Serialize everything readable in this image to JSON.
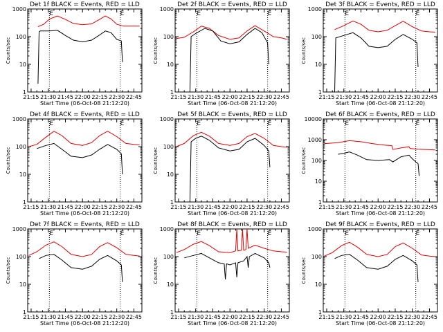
{
  "chart_data": [
    {
      "type": "line",
      "title": "Det 1f BLACK = Events, RED = LLD",
      "ylabel": "Counts/sec",
      "xlabel": "Start Time (06-Oct-08 21:12:20)",
      "x_ticks": [
        "21:15",
        "21:30",
        "21:45",
        "22:00",
        "22:15",
        "22:30",
        "22:45"
      ],
      "y_ticks": [
        "1",
        "10",
        "100",
        "1000"
      ],
      "ylim": [
        1,
        1000
      ],
      "yscale": "log",
      "xlim": [
        "21:12",
        "22:52"
      ],
      "vlines": [
        "21:31",
        "22:33"
      ],
      "markers": [
        "E",
        "E"
      ],
      "series": [
        {
          "name": "LLD",
          "color": "#e00000",
          "x": [
            "21:21",
            "21:26",
            "21:31",
            "21:38",
            "21:45",
            "21:52",
            "22:00",
            "22:08",
            "22:15",
            "22:20",
            "22:25",
            "22:30",
            "22:36",
            "22:44",
            "22:50"
          ],
          "values": [
            230,
            280,
            430,
            560,
            420,
            300,
            270,
            290,
            420,
            560,
            440,
            280,
            240,
            240,
            240
          ]
        },
        {
          "name": "Events",
          "color": "#000000",
          "x": [
            "21:21",
            "21:22",
            "21:23",
            "21:31",
            "21:38",
            "21:45",
            "21:52",
            "22:00",
            "22:08",
            "22:15",
            "22:20",
            "22:25",
            "22:30",
            "22:34",
            "22:35"
          ],
          "values": [
            2,
            150,
            160,
            160,
            170,
            110,
            75,
            65,
            75,
            115,
            160,
            140,
            80,
            70,
            12
          ]
        }
      ]
    },
    {
      "type": "line",
      "title": "Det 2f BLACK = Events, RED = LLD",
      "ylabel": "Counts/sec",
      "xlabel": "Start Time (06-Oct-08 21:12:20)",
      "x_ticks": [
        "21:15",
        "21:30",
        "21:45",
        "22:00",
        "22:15",
        "22:30",
        "22:45"
      ],
      "y_ticks": [
        "1",
        "10",
        "100",
        "1000"
      ],
      "ylim": [
        1,
        1000
      ],
      "yscale": "log",
      "xlim": [
        "21:12",
        "22:52"
      ],
      "vlines": [
        "21:31",
        "22:33"
      ],
      "markers": [
        "E",
        "E"
      ],
      "series": [
        {
          "name": "LLD",
          "color": "#e00000",
          "x": [
            "21:13",
            "21:20",
            "21:28",
            "21:35",
            "21:42",
            "21:50",
            "22:00",
            "22:08",
            "22:15",
            "22:22",
            "22:30",
            "22:38",
            "22:45",
            "22:50"
          ],
          "values": [
            85,
            95,
            150,
            240,
            200,
            110,
            80,
            90,
            160,
            250,
            160,
            100,
            90,
            80
          ]
        },
        {
          "name": "Events",
          "color": "#000000",
          "x": [
            "21:25",
            "21:26",
            "21:30",
            "21:38",
            "21:45",
            "21:52",
            "22:00",
            "22:08",
            "22:15",
            "22:22",
            "22:28",
            "22:33",
            "22:34"
          ],
          "values": [
            1,
            100,
            130,
            200,
            160,
            70,
            55,
            65,
            120,
            200,
            140,
            60,
            10
          ]
        }
      ]
    },
    {
      "type": "line",
      "title": "Det 3f BLACK = Events, RED = LLD",
      "ylabel": "Counts/sec",
      "xlabel": "Start Time (06-Oct-08 21:12:20)",
      "x_ticks": [
        "21:15",
        "21:30",
        "21:45",
        "22:00",
        "22:15",
        "22:30",
        "22:45"
      ],
      "y_ticks": [
        "1",
        "10",
        "100",
        "1000"
      ],
      "ylim": [
        1,
        1000
      ],
      "yscale": "log",
      "xlim": [
        "21:12",
        "22:52"
      ],
      "vlines": [
        "21:31",
        "22:33"
      ],
      "markers": [
        "E",
        "E"
      ],
      "series": [
        {
          "name": "LLD",
          "color": "#e00000",
          "x": [
            "21:22",
            "21:30",
            "21:38",
            "21:45",
            "21:52",
            "22:00",
            "22:08",
            "22:15",
            "22:22",
            "22:30",
            "22:38",
            "22:45",
            "22:50"
          ],
          "values": [
            180,
            250,
            370,
            280,
            170,
            150,
            170,
            250,
            360,
            230,
            160,
            150,
            145
          ]
        },
        {
          "name": "Events",
          "color": "#000000",
          "x": [
            "21:22",
            "21:23",
            "21:30",
            "21:38",
            "21:45",
            "21:52",
            "22:00",
            "22:08",
            "22:15",
            "22:22",
            "22:30",
            "22:34",
            "22:35"
          ],
          "values": [
            1,
            90,
            110,
            140,
            90,
            45,
            40,
            45,
            80,
            120,
            80,
            60,
            8
          ]
        }
      ]
    },
    {
      "type": "line",
      "title": "Det 4f BLACK = Events, RED = LLD",
      "ylabel": "Counts/sec",
      "xlabel": "Start Time (06-Oct-08 21:12:20)",
      "x_ticks": [
        "21:15",
        "21:30",
        "21:45",
        "22:00",
        "22:15",
        "22:30",
        "22:45"
      ],
      "y_ticks": [
        "1",
        "10",
        "100",
        "1000"
      ],
      "ylim": [
        1,
        1000
      ],
      "yscale": "log",
      "xlim": [
        "21:12",
        "22:52"
      ],
      "vlines": [
        "21:31",
        "22:33"
      ],
      "markers": [
        "E",
        "E"
      ],
      "series": [
        {
          "name": "LLD",
          "color": "#e00000",
          "x": [
            "21:13",
            "21:20",
            "21:28",
            "21:35",
            "21:42",
            "21:50",
            "22:00",
            "22:08",
            "22:15",
            "22:22",
            "22:30",
            "22:38",
            "22:45",
            "22:50"
          ],
          "values": [
            100,
            120,
            220,
            360,
            250,
            130,
            110,
            140,
            250,
            360,
            230,
            130,
            120,
            115
          ]
        },
        {
          "name": "Events",
          "color": "#000000",
          "x": [
            "21:20",
            "21:28",
            "21:35",
            "21:42",
            "21:50",
            "22:00",
            "22:08",
            "22:15",
            "22:22",
            "22:30",
            "22:34",
            "22:35"
          ],
          "values": [
            85,
            110,
            130,
            80,
            45,
            40,
            50,
            80,
            120,
            80,
            55,
            10
          ]
        }
      ]
    },
    {
      "type": "line",
      "title": "Det 5f BLACK = Events, RED = LLD",
      "ylabel": "Counts/sec",
      "xlabel": "Start Time (06-Oct-08 21:12:20)",
      "x_ticks": [
        "21:15",
        "21:30",
        "21:45",
        "22:00",
        "22:15",
        "22:30",
        "22:45"
      ],
      "y_ticks": [
        "1",
        "10",
        "100",
        "1000"
      ],
      "ylim": [
        1,
        1000
      ],
      "yscale": "log",
      "xlim": [
        "21:12",
        "22:52"
      ],
      "vlines": [
        "21:31",
        "22:33"
      ],
      "markers": [
        "E",
        "E"
      ],
      "series": [
        {
          "name": "LLD",
          "color": "#e00000",
          "x": [
            "21:13",
            "21:20",
            "21:28",
            "21:35",
            "21:42",
            "21:50",
            "22:00",
            "22:08",
            "22:15",
            "22:22",
            "22:30",
            "22:38",
            "22:45",
            "22:50"
          ],
          "values": [
            100,
            130,
            250,
            330,
            240,
            130,
            110,
            130,
            230,
            300,
            200,
            110,
            100,
            95
          ]
        },
        {
          "name": "Events",
          "color": "#000000",
          "x": [
            "21:25",
            "21:26",
            "21:30",
            "21:35",
            "21:42",
            "21:50",
            "22:00",
            "22:08",
            "22:15",
            "22:22",
            "22:30",
            "22:34",
            "22:35"
          ],
          "values": [
            1,
            150,
            200,
            240,
            170,
            90,
            70,
            80,
            150,
            200,
            110,
            70,
            18
          ]
        }
      ]
    },
    {
      "type": "line",
      "title": "Det 6f BLACK = Events, RED = LLD",
      "ylabel": "Counts/sec",
      "xlabel": "Start Time (06-Oct-08 21:12:20)",
      "x_ticks": [
        "21:15",
        "21:30",
        "21:45",
        "22:00",
        "22:15",
        "22:30",
        "22:45"
      ],
      "y_ticks": [
        "1",
        "10",
        "100",
        "1000",
        "10000"
      ],
      "ylim": [
        1,
        10000
      ],
      "yscale": "log",
      "xlim": [
        "21:12",
        "22:52"
      ],
      "vlines": [
        "21:31",
        "22:33"
      ],
      "markers": [
        "E",
        "E"
      ],
      "series": [
        {
          "name": "LLD",
          "color": "#e00000",
          "x": [
            "21:13",
            "21:25",
            "21:35",
            "21:45",
            "21:55",
            "22:05",
            "22:12",
            "22:13",
            "22:20",
            "22:27",
            "22:28",
            "22:35",
            "22:45",
            "22:50"
          ],
          "values": [
            650,
            720,
            900,
            800,
            650,
            550,
            520,
            340,
            400,
            460,
            380,
            350,
            330,
            320
          ]
        },
        {
          "name": "Events",
          "color": "#000000",
          "x": [
            "21:25",
            "21:30",
            "21:35",
            "21:42",
            "21:50",
            "22:00",
            "22:10",
            "22:13",
            "22:20",
            "22:27",
            "22:30",
            "22:35",
            "22:36"
          ],
          "values": [
            200,
            220,
            260,
            180,
            110,
            100,
            110,
            85,
            150,
            180,
            120,
            70,
            18
          ]
        }
      ]
    },
    {
      "type": "line",
      "title": "Det 7f BLACK = Events, RED = LLD",
      "ylabel": "Counts/sec",
      "xlabel": "Start Time (06-Oct-08 21:12:20)",
      "x_ticks": [
        "21:15",
        "21:30",
        "21:45",
        "22:00",
        "22:15",
        "22:30",
        "22:45"
      ],
      "y_ticks": [
        "1",
        "10",
        "100",
        "1000"
      ],
      "ylim": [
        1,
        1000
      ],
      "yscale": "log",
      "xlim": [
        "21:12",
        "22:52"
      ],
      "vlines": [
        "21:31",
        "22:33"
      ],
      "markers": [
        "E",
        "E"
      ],
      "series": [
        {
          "name": "LLD",
          "color": "#e00000",
          "x": [
            "21:13",
            "21:20",
            "21:28",
            "21:35",
            "21:42",
            "21:50",
            "22:00",
            "22:08",
            "22:15",
            "22:22",
            "22:30",
            "22:38",
            "22:45",
            "22:50"
          ],
          "values": [
            110,
            150,
            260,
            340,
            230,
            120,
            100,
            120,
            230,
            320,
            210,
            120,
            110,
            105
          ]
        },
        {
          "name": "Events",
          "color": "#000000",
          "x": [
            "21:22",
            "21:28",
            "21:35",
            "21:42",
            "21:50",
            "22:00",
            "22:08",
            "22:15",
            "22:22",
            "22:30",
            "22:34",
            "22:35"
          ],
          "values": [
            85,
            110,
            120,
            75,
            40,
            35,
            45,
            80,
            110,
            70,
            50,
            12
          ]
        }
      ]
    },
    {
      "type": "line",
      "title": "Det 8f BLACK = Events, RED = LLD",
      "ylabel": "Counts/sec",
      "xlabel": "Start Time (06-Oct-08 21:12:20)",
      "x_ticks": [
        "21:15",
        "21:30",
        "21:45",
        "22:00",
        "22:15",
        "22:30",
        "22:45"
      ],
      "y_ticks": [
        "1",
        "10",
        "100",
        "1000"
      ],
      "ylim": [
        1,
        1000
      ],
      "yscale": "log",
      "xlim": [
        "21:12",
        "22:52"
      ],
      "vlines": [
        "21:31",
        "22:33"
      ],
      "markers": [
        "E",
        "E"
      ],
      "series": [
        {
          "name": "LLD",
          "color": "#e00000",
          "x": [
            "21:13",
            "21:20",
            "21:28",
            "21:35",
            "21:42",
            "21:50",
            "22:00",
            "22:05",
            "22:06",
            "22:07",
            "22:10",
            "22:11",
            "22:12",
            "22:14",
            "22:15",
            "22:16",
            "22:22",
            "22:30",
            "22:38",
            "22:45",
            "22:50"
          ],
          "values": [
            140,
            180,
            280,
            350,
            250,
            150,
            140,
            160,
            1000,
            160,
            170,
            1000,
            170,
            180,
            1000,
            200,
            260,
            200,
            160,
            150,
            145
          ]
        },
        {
          "name": "Events",
          "color": "#000000",
          "x": [
            "21:20",
            "21:28",
            "21:35",
            "21:42",
            "21:50",
            "21:55",
            "21:56",
            "21:57",
            "22:00",
            "22:05",
            "22:06",
            "22:07",
            "22:12",
            "22:15",
            "22:16",
            "22:17",
            "22:22",
            "22:30",
            "22:34",
            "22:35"
          ],
          "values": [
            90,
            110,
            130,
            90,
            60,
            55,
            15,
            55,
            50,
            60,
            18,
            60,
            70,
            100,
            40,
            100,
            130,
            90,
            60,
            40
          ]
        }
      ]
    },
    {
      "type": "line",
      "title": "Det 9f BLACK = Events, RED = LLD",
      "ylabel": "Counts/sec",
      "xlabel": "Start Time (06-Oct-08 21:12:20)",
      "x_ticks": [
        "21:15",
        "21:30",
        "21:45",
        "22:00",
        "22:15",
        "22:30",
        "22:45"
      ],
      "y_ticks": [
        "1",
        "10",
        "100",
        "1000"
      ],
      "ylim": [
        1,
        1000
      ],
      "yscale": "log",
      "xlim": [
        "21:12",
        "22:52"
      ],
      "vlines": [
        "21:31",
        "22:33"
      ],
      "markers": [
        "E",
        "E"
      ],
      "series": [
        {
          "name": "LLD",
          "color": "#e00000",
          "x": [
            "21:13",
            "21:20",
            "21:28",
            "21:35",
            "21:42",
            "21:50",
            "22:00",
            "22:08",
            "22:15",
            "22:22",
            "22:30",
            "22:38",
            "22:45",
            "22:50"
          ],
          "values": [
            105,
            140,
            250,
            330,
            220,
            120,
            100,
            120,
            230,
            310,
            200,
            115,
            105,
            100
          ]
        },
        {
          "name": "Events",
          "color": "#000000",
          "x": [
            "21:22",
            "21:28",
            "21:35",
            "21:42",
            "21:50",
            "22:00",
            "22:08",
            "22:15",
            "22:22",
            "22:30",
            "22:34",
            "22:35"
          ],
          "values": [
            85,
            110,
            120,
            75,
            40,
            35,
            45,
            80,
            110,
            70,
            50,
            12
          ]
        }
      ]
    }
  ]
}
